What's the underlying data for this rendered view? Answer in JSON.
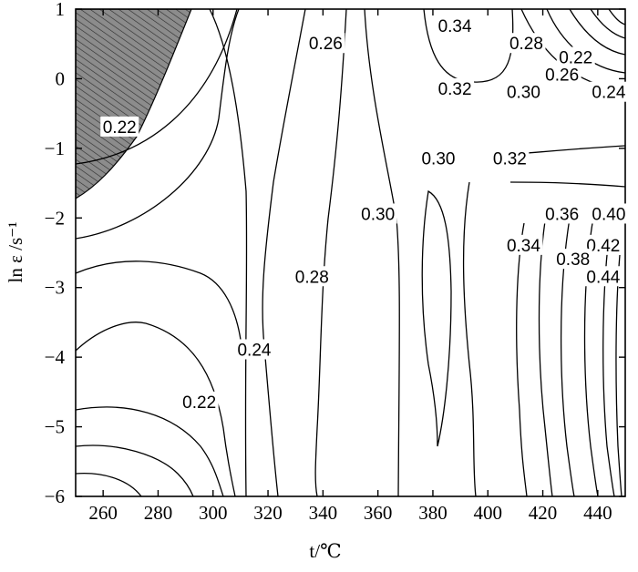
{
  "chart_data": {
    "type": "contour",
    "xlabel": "t/℃",
    "ylabel": "ln ε /s⁻¹",
    "xlim": [
      250,
      450
    ],
    "ylim": [
      -6,
      1
    ],
    "x_ticks": [
      "260",
      "280",
      "300",
      "320",
      "340",
      "360",
      "380",
      "400",
      "420",
      "440"
    ],
    "x_tick_values": [
      260,
      280,
      300,
      320,
      340,
      360,
      380,
      400,
      420,
      440
    ],
    "y_ticks": [
      "−6",
      "−5",
      "−4",
      "−3",
      "−2",
      "−1",
      "0",
      "1"
    ],
    "y_tick_values": [
      -6,
      -5,
      -4,
      -3,
      -2,
      -1,
      0,
      1
    ],
    "instability_region_color": "#8c8c8c",
    "contour_labels": [
      {
        "text": "0.26",
        "x": 341,
        "y": 0.5
      },
      {
        "text": "0.34",
        "x": 388,
        "y": 0.75
      },
      {
        "text": "0.32",
        "x": 388,
        "y": -0.15
      },
      {
        "text": "0.28",
        "x": 414,
        "y": 0.5
      },
      {
        "text": "0.22",
        "x": 432,
        "y": 0.3
      },
      {
        "text": "0.26",
        "x": 427,
        "y": 0.05
      },
      {
        "text": "0.30",
        "x": 413,
        "y": -0.2
      },
      {
        "text": "0.24",
        "x": 444,
        "y": -0.2
      },
      {
        "text": "0.22",
        "x": 266,
        "y": -0.7
      },
      {
        "text": "0.30",
        "x": 382,
        "y": -1.15
      },
      {
        "text": "0.32",
        "x": 408,
        "y": -1.15
      },
      {
        "text": "0.30",
        "x": 360,
        "y": -1.95
      },
      {
        "text": "0.36",
        "x": 427,
        "y": -1.95
      },
      {
        "text": "0.40",
        "x": 444,
        "y": -1.95
      },
      {
        "text": "0.34",
        "x": 413,
        "y": -2.4
      },
      {
        "text": "0.42",
        "x": 442,
        "y": -2.4
      },
      {
        "text": "0.38",
        "x": 431,
        "y": -2.6
      },
      {
        "text": "0.28",
        "x": 336,
        "y": -2.85
      },
      {
        "text": "0.44",
        "x": 442,
        "y": -2.85
      },
      {
        "text": "0.24",
        "x": 315,
        "y": -3.9
      },
      {
        "text": "0.22",
        "x": 295,
        "y": -4.65
      }
    ]
  }
}
